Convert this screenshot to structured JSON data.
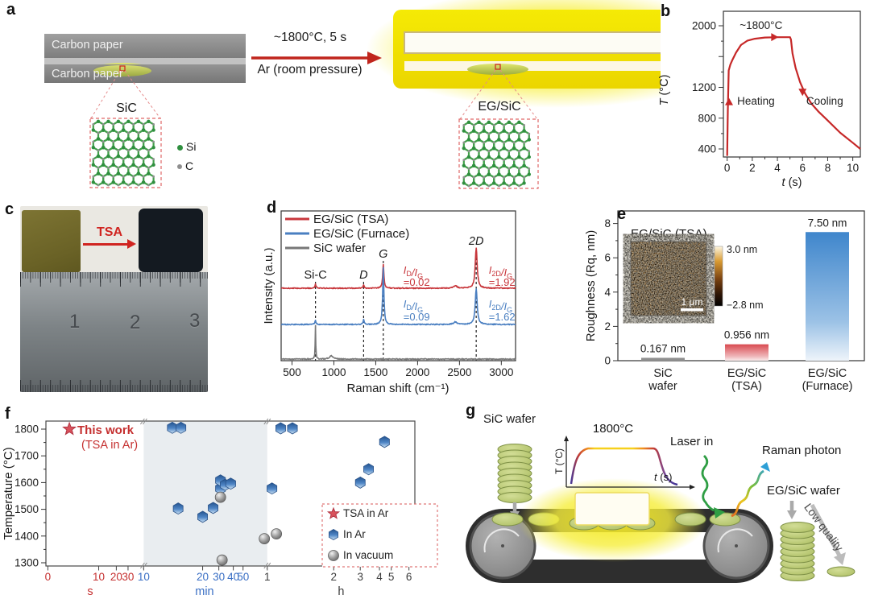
{
  "figure": {
    "background": "#ffffff"
  },
  "panels": {
    "a": {
      "label": "a",
      "carbon_paper_top": "Carbon paper",
      "carbon_paper_bottom": "Carbon paper",
      "arrow_label_top": "~1800°C, 5 s",
      "arrow_label_bottom": "Ar (room pressure)",
      "inset_left_title": "SiC",
      "inset_right_title": "EG/SiC",
      "atom_legend": [
        {
          "name": "Si",
          "color": "#2f8f3f"
        },
        {
          "name": "C",
          "color": "#8f8f8f"
        }
      ]
    },
    "b": {
      "label": "b"
    },
    "c": {
      "label": "c",
      "arrow_label": "TSA",
      "ruler_numbers": [
        "1",
        "2",
        "3"
      ]
    },
    "d": {
      "label": "d"
    },
    "e": {
      "label": "e"
    },
    "f": {
      "label": "f"
    },
    "g": {
      "label": "g",
      "sic_wafer_label": "SiC wafer",
      "egsic_wafer_label": "EG/SiC wafer",
      "low_quality_label": "Low quality",
      "laser_label": "Laser in",
      "raman_label": "Raman photon",
      "inset_title": "1800°C",
      "inset_ylabel": "T (°C)",
      "inset_xlabel_var": "t",
      "inset_xlabel_rest": " (s)"
    }
  },
  "chart_data": [
    {
      "id": "b",
      "type": "line",
      "xlabel_var": "t",
      "xlabel_rest": " (s)",
      "ylabel_var": "T",
      "ylabel_rest": " (°C)",
      "xlim": [
        -0.3,
        10.6
      ],
      "ylim": [
        300,
        2060
      ],
      "xticks": [
        0,
        2,
        4,
        6,
        8,
        10
      ],
      "yticks": [
        400,
        800,
        1200,
        1600,
        2000
      ],
      "ytick_labels": [
        "400",
        "800",
        "1200",
        "",
        "2000"
      ],
      "line_color": "#c62828",
      "annotations": [
        {
          "text": "~1800°C",
          "t": 1.0,
          "T": 1960,
          "anchor": "start"
        },
        {
          "text": "Heating",
          "t": 0.8,
          "T": 975,
          "anchor": "start"
        },
        {
          "text": "Cooling",
          "t": 6.3,
          "T": 975,
          "anchor": "start"
        }
      ],
      "arrow_markers": [
        {
          "t": 0.15,
          "T": 1000,
          "dir": "up"
        },
        {
          "t": 3.7,
          "T": 1852,
          "dir": "right"
        },
        {
          "t": 6.0,
          "T": 1150,
          "dir": "down"
        }
      ],
      "series": [
        {
          "name": "temperature profile",
          "x": [
            0,
            0.05,
            0.12,
            0.25,
            0.4,
            0.7,
            1.1,
            1.6,
            2.2,
            3,
            4,
            4.6,
            5,
            5.08,
            5.2,
            5.45,
            5.8,
            6.2,
            6.7,
            7.3,
            8,
            9,
            10,
            10.6
          ],
          "y": [
            310,
            900,
            1420,
            1495,
            1550,
            1650,
            1750,
            1805,
            1832,
            1847,
            1852,
            1852,
            1852,
            1820,
            1640,
            1450,
            1270,
            1120,
            990,
            880,
            770,
            610,
            480,
            400
          ]
        }
      ]
    },
    {
      "id": "d",
      "type": "line",
      "xlabel": "Raman shift (cm⁻¹)",
      "ylabel": "Intensity (a.u.)",
      "xlim": [
        370,
        3170
      ],
      "xticks": [
        500,
        1000,
        1500,
        2000,
        2500,
        3000
      ],
      "legend": [
        {
          "name": "EG/SiC (TSA)",
          "color": "#c8373c"
        },
        {
          "name": "EG/SiC (Furnace)",
          "color": "#4a7fc1"
        },
        {
          "name": "SiC wafer",
          "color": "#777777"
        }
      ],
      "peak_marks": [
        {
          "text": "Si-C",
          "x": 780,
          "italic": false,
          "line_top": 100,
          "label_y": 96
        },
        {
          "text": "D",
          "x": 1355,
          "italic": true,
          "line_top": 100,
          "label_y": 96
        },
        {
          "text": "G",
          "x": 1590,
          "italic": true,
          "line_top": 74,
          "label_y": 70
        },
        {
          "text": "2D",
          "x": 2700,
          "italic": true,
          "line_top": 58,
          "label_y": 54
        }
      ],
      "ratio_annotations": [
        {
          "series": 0,
          "ratio": "I_D/I_G",
          "value": "=0.02",
          "x": 1830,
          "y1": 90,
          "y2": 105
        },
        {
          "series": 0,
          "ratio": "I_2D/I_G",
          "value": "=1.92",
          "x": 2850,
          "y1": 90,
          "y2": 105
        },
        {
          "series": 1,
          "ratio": "I_D/I_G",
          "value": "=0.09",
          "x": 1830,
          "y1": 132,
          "y2": 148
        },
        {
          "series": 1,
          "ratio": "I_2D/I_G",
          "value": "=1.62",
          "x": 2850,
          "y1": 132,
          "y2": 148
        }
      ],
      "series": [
        {
          "name": "EG/SiC (TSA)",
          "color": "#c8373c",
          "baseline_y": 108,
          "peaks": [
            {
              "c": 780,
              "h": 5,
              "w": 8
            },
            {
              "c": 1355,
              "h": 4,
              "w": 8
            },
            {
              "c": 1590,
              "h": 30,
              "w": 9
            },
            {
              "c": 2450,
              "h": 3,
              "w": 25
            },
            {
              "c": 2700,
              "h": 50,
              "w": 14
            }
          ]
        },
        {
          "name": "EG/SiC (Furnace)",
          "color": "#4a7fc1",
          "baseline_y": 153,
          "peaks": [
            {
              "c": 780,
              "h": 5,
              "w": 8
            },
            {
              "c": 1355,
              "h": 6,
              "w": 8
            },
            {
              "c": 1590,
              "h": 70,
              "w": 9
            },
            {
              "c": 2450,
              "h": 3,
              "w": 25
            },
            {
              "c": 2700,
              "h": 44,
              "w": 14
            }
          ]
        },
        {
          "name": "SiC wafer",
          "color": "#777777",
          "baseline_y": 196,
          "peaks": [
            {
              "c": 780,
              "h": 42,
              "w": 4
            },
            {
              "c": 970,
              "h": 4,
              "w": 25
            }
          ]
        }
      ]
    },
    {
      "id": "e",
      "type": "bar",
      "ylabel": "Roughness (Rq, nm)",
      "ylim": [
        0,
        8.7
      ],
      "yticks": [
        0,
        2,
        4,
        6,
        8
      ],
      "categories": [
        [
          "SiC",
          "wafer"
        ],
        [
          "EG/SiC",
          "(TSA)"
        ],
        [
          "EG/SiC",
          "(Furnace)"
        ]
      ],
      "values": [
        0.167,
        0.956,
        7.5
      ],
      "value_labels": [
        "0.167 nm",
        "0.956 nm",
        "7.50 nm"
      ],
      "bar_styles": [
        "gray",
        "red-gradient",
        "blue-gradient"
      ],
      "inset": {
        "title": "EG/SiC (TSA)",
        "scalebar_label": "1 μm",
        "colorbar_top": "3.0 nm",
        "colorbar_bottom": "−2.8 nm"
      }
    },
    {
      "id": "f",
      "type": "scatter",
      "ylabel": "Temperature (°C)",
      "ylim": [
        1290,
        1845
      ],
      "yticks": [
        1300,
        1400,
        1500,
        1600,
        1700,
        1800
      ],
      "x_segments": [
        {
          "unit": "s",
          "color": "#c53030",
          "span": [
            0,
            0.265
          ],
          "unit_f": 0.12,
          "ticks": [
            {
              "v": 0,
              "f": 0.02
            },
            {
              "v": 3,
              "f": 0.17,
              "hide": true
            },
            {
              "v": 5,
              "f": 0.24,
              "hide": true
            },
            {
              "v": 10,
              "f": 0.54
            },
            {
              "v": 20,
              "f": 0.72
            },
            {
              "v": 30,
              "f": 0.84
            },
            {
              "v": 40,
              "f": 1.0,
              "hide": true
            }
          ]
        },
        {
          "unit": "min",
          "color": "#3a6fc4",
          "span": [
            0.265,
            0.6
          ],
          "unit_f": 0.43,
          "ticks": [
            {
              "v": 10,
              "f": 0.0
            },
            {
              "v": 20,
              "f": 0.477
            },
            {
              "v": 30,
              "f": 0.608
            },
            {
              "v": 40,
              "f": 0.725
            },
            {
              "v": 50,
              "f": 0.804
            },
            {
              "v": 60,
              "f": 1.0,
              "hide": true
            }
          ]
        },
        {
          "unit": "h",
          "color": "#3d3d3d",
          "span": [
            0.6,
            1.0
          ],
          "unit_f": 0.8,
          "ticks": [
            {
              "v": 1,
              "f": 0.0
            },
            {
              "v": 2,
              "f": 0.45
            },
            {
              "v": 3,
              "f": 0.63
            },
            {
              "v": 4,
              "f": 0.76
            },
            {
              "v": 5,
              "f": 0.84
            },
            {
              "v": 6,
              "f": 0.96
            }
          ]
        }
      ],
      "shaded_span": [
        0.265,
        0.6
      ],
      "this_work": {
        "title": "This work",
        "subtitle": "(TSA in Ar)",
        "color": "#c53030"
      },
      "legend": [
        {
          "name": "TSA in Ar",
          "marker": "star"
        },
        {
          "name": "In Ar",
          "marker": "hexagon"
        },
        {
          "name": "In vacuum",
          "marker": "sphere"
        }
      ],
      "series": [
        {
          "name": "TSA in Ar",
          "marker": "star",
          "color": "#d9525c",
          "points": [
            {
              "t": 5,
              "unit": "s",
              "T": 1800
            }
          ]
        },
        {
          "name": "In Ar",
          "marker": "hexagon",
          "color": "#3a72b8",
          "points": [
            {
              "t": 14,
              "unit": "min",
              "T": 1805
            },
            {
              "t": 15.5,
              "unit": "min",
              "T": 1805
            },
            {
              "t": 15,
              "unit": "min",
              "T": 1503
            },
            {
              "t": 20,
              "unit": "min",
              "T": 1472
            },
            {
              "t": 26,
              "unit": "min",
              "T": 1505
            },
            {
              "t": 31,
              "unit": "min",
              "T": 1578
            },
            {
              "t": 31,
              "unit": "min",
              "T": 1608
            },
            {
              "t": 34,
              "unit": "min",
              "T": 1592
            },
            {
              "t": 38,
              "unit": "min",
              "T": 1596
            },
            {
              "t": 1.05,
              "unit": "h",
              "T": 1578
            },
            {
              "t": 1.15,
              "unit": "h",
              "T": 1803
            },
            {
              "t": 1.3,
              "unit": "h",
              "T": 1803
            },
            {
              "t": 3,
              "unit": "h",
              "T": 1600
            },
            {
              "t": 3.4,
              "unit": "h",
              "T": 1650
            },
            {
              "t": 4.4,
              "unit": "h",
              "T": 1752
            }
          ]
        },
        {
          "name": "In vacuum",
          "marker": "sphere",
          "color": "#8d8d8d",
          "points": [
            {
              "t": 31,
              "unit": "min",
              "T": 1545
            },
            {
              "t": 32,
              "unit": "min",
              "T": 1310
            },
            {
              "t": 0.97,
              "unit": "h",
              "T": 1390
            },
            {
              "t": 1.1,
              "unit": "h",
              "T": 1408
            }
          ]
        }
      ]
    },
    {
      "id": "g-inset",
      "type": "line",
      "title": "1800°C",
      "xlabel": "t (s)",
      "ylabel": "T (°C)",
      "plateau_T": 1800,
      "description": "temperature pulse: fast ramp, short plateau at 1800°C, fast cool"
    }
  ]
}
